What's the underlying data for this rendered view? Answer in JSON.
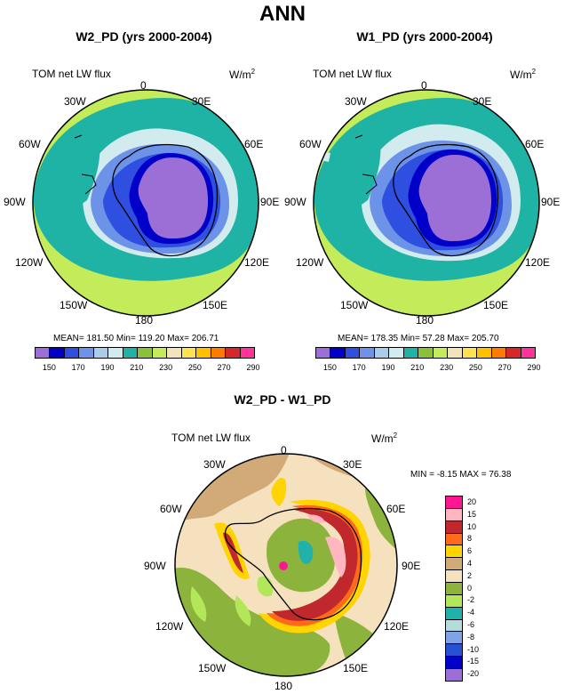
{
  "title": "ANN",
  "panels": [
    {
      "title": "W2_PD (yrs 2000-2004)",
      "variable": "TOM net LW flux",
      "units": "W/m",
      "units_exp": "2",
      "stats": "MEAN= 181.50  Min= 119.20  Max= 206.71",
      "mean": 181.5,
      "min": 119.2,
      "max": 206.71
    },
    {
      "title": "W1_PD (yrs 2000-2004)",
      "variable": "TOM net LW flux",
      "units": "W/m",
      "units_exp": "2",
      "stats": "MEAN= 178.35  Min=  57.28  Max= 205.70",
      "mean": 178.35,
      "min": 57.28,
      "max": 205.7
    }
  ],
  "diff": {
    "title": "W2_PD - W1_PD",
    "variable": "TOM net LW flux",
    "units": "W/m",
    "units_exp": "2",
    "stats": "MIN =  -8.15 MAX =  76.38",
    "min": -8.15,
    "max": 76.38
  },
  "lon_labels": {
    "top": "0",
    "tr1": "30E",
    "tr2": "60E",
    "right": "90E",
    "br1": "120E",
    "br2": "150E",
    "bottom": "180",
    "bl2": "150W",
    "bl1": "120W",
    "left": "90W",
    "tl2": "60W",
    "tl1": "30W"
  },
  "abs_colorbar": {
    "colors": [
      "#9b6fd6",
      "#0000c8",
      "#2e4fe0",
      "#6d93e8",
      "#a9cde8",
      "#d2ebef",
      "#1fb3a5",
      "#8cbf3a",
      "#c4ec5a",
      "#f3e3bc",
      "#ffe24d",
      "#ffc000",
      "#ff7a00",
      "#d62828",
      "#ff3399"
    ],
    "labels": [
      "150",
      "170",
      "190",
      "210",
      "230",
      "250",
      "270",
      "290"
    ]
  },
  "diff_colorbar": {
    "colors": [
      "#ff1493",
      "#ffb6c1",
      "#c0282d",
      "#ff6a1a",
      "#ffd400",
      "#d2aa78",
      "#f5e1bd",
      "#8cb43c",
      "#b4e65a",
      "#20b2aa",
      "#b4dcdc",
      "#7fa3e6",
      "#2850d2",
      "#0000c8",
      "#9b6fd6"
    ],
    "labels": [
      "20",
      "15",
      "10",
      "8",
      "6",
      "4",
      "2",
      "0",
      "-2",
      "-4",
      "-6",
      "-8",
      "-10",
      "-15",
      "-20"
    ]
  }
}
